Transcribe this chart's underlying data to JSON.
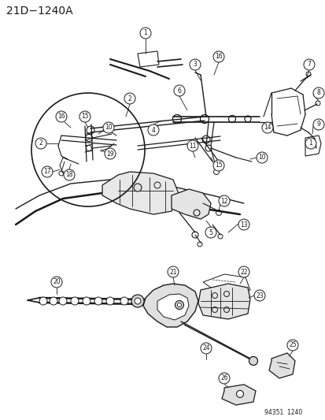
{
  "title": "21D−1240A",
  "part_number": "94351  1240",
  "bg_color": "#f0f0f0",
  "line_color": "#1a1a1a",
  "fig_width": 4.14,
  "fig_height": 5.33,
  "dpi": 100
}
